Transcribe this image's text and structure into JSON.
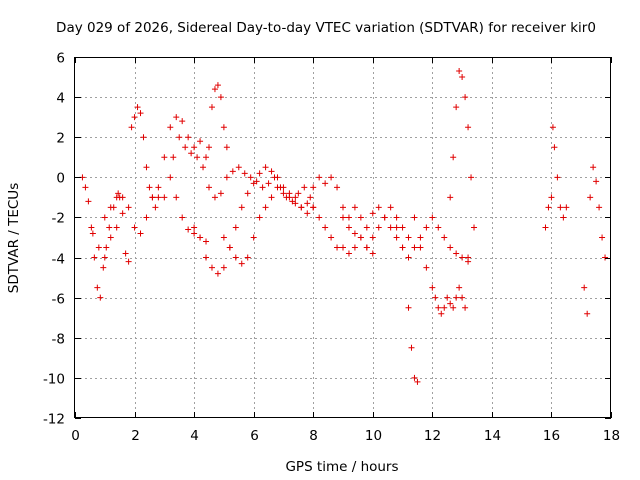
{
  "chart_data": {
    "type": "scatter",
    "title": "Day 029 of 2026, Sidereal Day-to-day VTEC variation (SDTVAR) for receiver kir0",
    "xlabel": "GPS time / hours",
    "ylabel": "SDTVAR / TECUs",
    "xlim": [
      0,
      18
    ],
    "ylim": [
      -12,
      6
    ],
    "xticks": [
      0,
      2,
      4,
      6,
      8,
      10,
      12,
      14,
      16,
      18
    ],
    "yticks": [
      -12,
      -10,
      -8,
      -6,
      -4,
      -2,
      0,
      2,
      4,
      6
    ],
    "xtick_labels": [
      "0",
      "2",
      "4",
      "6",
      "8",
      "10",
      "12",
      "14",
      "16",
      "18"
    ],
    "ytick_labels": [
      "-12",
      "-10",
      "-8",
      "-6",
      "-4",
      "-2",
      "0",
      "2",
      "4",
      "6"
    ],
    "grid": true,
    "marker": "+",
    "color": "#e00000",
    "series": [
      {
        "name": "s1",
        "x": [
          0.25,
          0.35,
          0.45,
          0.55,
          0.65,
          0.75,
          0.85,
          0.95,
          1.05,
          1.15,
          1.3,
          1.45,
          1.6
        ],
        "y": [
          0.0,
          -0.5,
          -1.2,
          -2.5,
          -4.0,
          -5.5,
          -6.0,
          -4.5,
          -3.5,
          -2.5,
          -1.5,
          -0.8,
          -1.0
        ]
      },
      {
        "name": "s2",
        "x": [
          0.6,
          0.8,
          1.0,
          1.2,
          1.4,
          1.5,
          1.7,
          1.8,
          1.9,
          2.0,
          2.1,
          2.2,
          2.3,
          2.4,
          2.5,
          2.6,
          2.7,
          2.8
        ],
        "y": [
          -2.8,
          -3.5,
          -4.0,
          -3.0,
          -2.5,
          -1.0,
          -3.8,
          -4.2,
          2.5,
          3.0,
          3.5,
          3.2,
          2.0,
          0.5,
          -0.5,
          -1.0,
          -1.5,
          -1.0
        ]
      },
      {
        "name": "s3",
        "x": [
          1.0,
          1.2,
          1.4,
          1.6,
          1.8,
          2.0,
          2.2,
          2.4,
          2.6,
          2.8,
          3.0,
          3.2,
          3.4,
          3.6,
          3.8,
          4.0,
          4.2,
          4.4
        ],
        "y": [
          -2.0,
          -1.5,
          -1.0,
          -1.8,
          -1.5,
          -2.5,
          -2.8,
          -2.0,
          -1.0,
          -0.5,
          1.0,
          2.5,
          3.0,
          2.8,
          2.0,
          1.5,
          1.8,
          1.0
        ]
      },
      {
        "name": "s4",
        "x": [
          3.0,
          3.2,
          3.4,
          3.6,
          3.8,
          4.0,
          4.2,
          4.4,
          4.5,
          4.6,
          4.7,
          4.8,
          4.9,
          5.0,
          5.1
        ],
        "y": [
          -1.0,
          0.0,
          -1.0,
          -2.0,
          -2.6,
          -2.8,
          -3.0,
          -3.2,
          1.5,
          3.5,
          4.4,
          4.6,
          4.0,
          2.5,
          1.5
        ]
      },
      {
        "name": "s5",
        "x": [
          3.3,
          3.5,
          3.7,
          3.9,
          4.1,
          4.3,
          4.5,
          4.7,
          4.9,
          5.1,
          5.3,
          5.5,
          5.7,
          5.9,
          6.1,
          6.3,
          6.5,
          6.7,
          6.9,
          7.1,
          7.3,
          7.5,
          7.7,
          7.9
        ],
        "y": [
          1.0,
          2.0,
          1.5,
          1.2,
          1.0,
          0.5,
          -0.5,
          -1.0,
          -0.8,
          0.0,
          0.3,
          0.5,
          0.2,
          0.0,
          -0.2,
          -0.5,
          -0.3,
          0.0,
          -0.5,
          -1.0,
          -1.2,
          -0.8,
          -0.5,
          -1.0
        ]
      },
      {
        "name": "s6",
        "x": [
          4.0,
          4.2,
          4.4,
          4.6,
          4.8,
          5.0,
          5.2,
          5.4,
          5.6,
          5.8,
          6.0,
          6.2,
          6.4,
          6.6,
          6.8,
          7.0,
          7.2,
          7.4,
          7.6,
          7.8,
          8.0
        ],
        "y": [
          -2.5,
          -3.0,
          -4.0,
          -4.5,
          -4.8,
          -4.5,
          -3.5,
          -2.5,
          -1.5,
          -0.8,
          -0.3,
          0.2,
          0.5,
          0.3,
          0.0,
          -0.5,
          -0.8,
          -1.0,
          -1.5,
          -1.8,
          -1.5
        ]
      },
      {
        "name": "s7",
        "x": [
          5.0,
          5.2,
          5.4,
          5.6,
          5.8,
          6.0,
          6.2,
          6.4,
          6.6,
          6.8,
          7.0,
          7.2,
          7.4,
          7.6,
          7.8,
          8.0,
          8.2,
          8.4,
          8.6,
          8.8,
          9.0,
          9.2,
          9.4,
          9.6,
          9.8,
          10.0
        ],
        "y": [
          -3.0,
          -3.5,
          -4.0,
          -4.3,
          -4.0,
          -3.0,
          -2.0,
          -1.5,
          -1.0,
          -0.5,
          -0.8,
          -1.0,
          -1.3,
          -1.5,
          -1.3,
          -1.5,
          -2.0,
          -2.5,
          -3.0,
          -3.5,
          -3.5,
          -3.8,
          -3.5,
          -3.0,
          -3.5,
          -3.8
        ]
      },
      {
        "name": "s8",
        "x": [
          8.0,
          8.2,
          8.4,
          8.6,
          8.8,
          9.0,
          9.2,
          9.4,
          9.6,
          9.8,
          10.0,
          10.2,
          10.4,
          10.6,
          10.8,
          11.0,
          11.2,
          11.3,
          11.4,
          11.5
        ],
        "y": [
          -0.5,
          0.0,
          -0.3,
          0.0,
          -0.5,
          -1.5,
          -2.0,
          -1.5,
          -2.0,
          -2.5,
          -1.8,
          -1.5,
          -2.0,
          -1.5,
          -2.5,
          -3.5,
          -6.5,
          -8.5,
          -10.0,
          -10.2
        ]
      },
      {
        "name": "s9",
        "x": [
          9.0,
          9.2,
          9.4,
          9.6,
          9.8,
          10.0,
          10.2,
          10.4,
          10.6,
          10.8,
          11.0,
          11.2,
          11.4,
          11.6,
          11.8,
          12.0,
          12.2,
          12.4,
          12.6,
          12.8,
          13.0,
          13.2
        ],
        "y": [
          -2.0,
          -2.5,
          -2.8,
          -3.0,
          -3.5,
          -3.0,
          -2.5,
          -2.0,
          -2.5,
          -3.0,
          -3.5,
          -4.0,
          -3.5,
          -3.0,
          -2.5,
          -2.0,
          -2.5,
          -3.0,
          -3.5,
          -3.8,
          -4.0,
          -4.2
        ]
      },
      {
        "name": "s10",
        "x": [
          10.8,
          11.0,
          11.2,
          11.4,
          11.6,
          11.8,
          12.0,
          12.1,
          12.2,
          12.3,
          12.4,
          12.5,
          12.6,
          12.7,
          12.8,
          12.9,
          13.0,
          13.1,
          13.2
        ],
        "y": [
          -2.0,
          -2.5,
          -3.0,
          -2.0,
          -3.5,
          -4.5,
          -5.5,
          -6.0,
          -6.5,
          -6.8,
          -6.5,
          -6.0,
          -6.3,
          -6.5,
          -6.0,
          -5.5,
          -6.0,
          -6.5,
          -4.0
        ]
      },
      {
        "name": "s11",
        "x": [
          12.6,
          12.7,
          12.8,
          12.9,
          13.0,
          13.1,
          13.2,
          13.3,
          13.4
        ],
        "y": [
          -1.0,
          1.0,
          3.5,
          5.3,
          5.0,
          4.0,
          2.5,
          0.0,
          -2.5
        ]
      },
      {
        "name": "s12",
        "x": [
          15.8,
          15.9,
          16.0,
          16.05,
          16.1,
          16.2,
          16.3,
          16.4,
          16.5
        ],
        "y": [
          -2.5,
          -1.5,
          -1.0,
          2.5,
          1.5,
          0.0,
          -1.5,
          -2.0,
          -1.5
        ]
      },
      {
        "name": "s13",
        "x": [
          17.1,
          17.2,
          17.3,
          17.4,
          17.5,
          17.6,
          17.7,
          17.8
        ],
        "y": [
          -5.5,
          -6.8,
          -1.0,
          0.5,
          -0.2,
          -1.5,
          -3.0,
          -4.0
        ]
      }
    ]
  }
}
